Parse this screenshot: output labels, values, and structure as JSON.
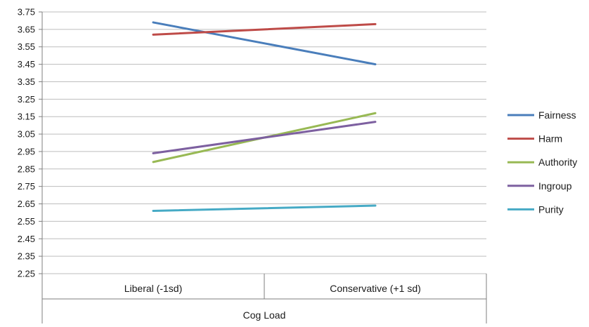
{
  "chart_data": {
    "type": "line",
    "title": "",
    "xlabel": "",
    "ylabel": "",
    "categories": [
      "Liberal (-1sd)",
      "Conservative (+1 sd)"
    ],
    "group_label": "Cog Load",
    "ylim": [
      2.25,
      3.75
    ],
    "yticks": [
      "3.75",
      "3.65",
      "3.55",
      "3.45",
      "3.35",
      "3.25",
      "3.15",
      "3.05",
      "2.95",
      "2.85",
      "2.75",
      "2.65",
      "2.55",
      "2.45",
      "2.35",
      "2.25"
    ],
    "grid": true,
    "legend_position": "right",
    "series": [
      {
        "name": "Fairness",
        "color": "#4a7ebb",
        "values": [
          3.69,
          3.45
        ]
      },
      {
        "name": "Harm",
        "color": "#be4b48",
        "values": [
          3.62,
          3.68
        ]
      },
      {
        "name": "Authority",
        "color": "#98b954",
        "values": [
          2.89,
          3.17
        ]
      },
      {
        "name": "Ingroup",
        "color": "#7d60a0",
        "values": [
          2.94,
          3.12
        ]
      },
      {
        "name": "Purity",
        "color": "#46aac5",
        "values": [
          2.61,
          2.64
        ]
      }
    ]
  }
}
